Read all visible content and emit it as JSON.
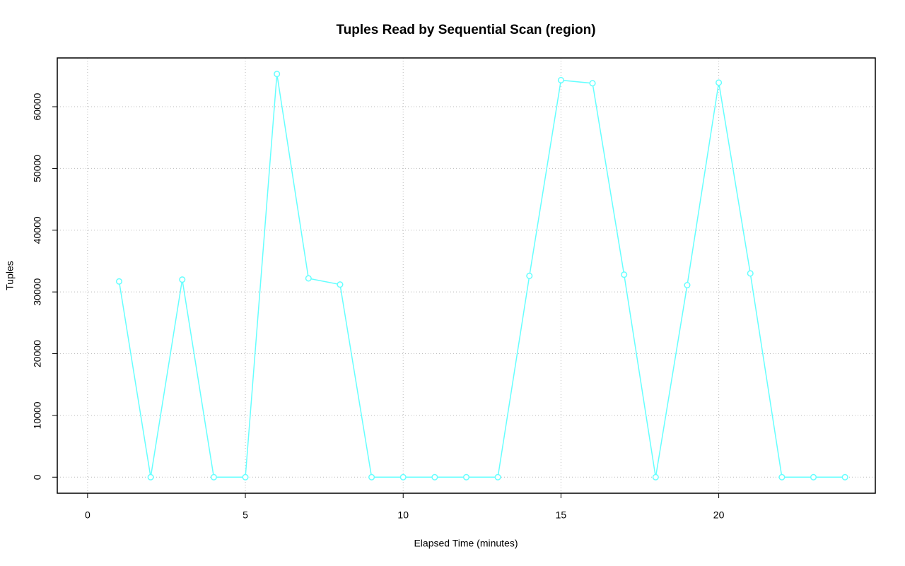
{
  "chart_data": {
    "type": "line",
    "title": "Tuples Read by Sequential Scan (region)",
    "x_label": "Elapsed Time (minutes)",
    "y_label": "Tuples",
    "x": [
      1,
      2,
      3,
      4,
      5,
      6,
      7,
      8,
      9,
      10,
      11,
      12,
      13,
      14,
      15,
      16,
      17,
      18,
      19,
      20,
      21,
      22,
      23,
      24
    ],
    "series": [
      {
        "name": "region",
        "color": "#66ffff",
        "values": [
          31700,
          0,
          32000,
          0,
          0,
          65300,
          32200,
          31200,
          0,
          0,
          0,
          0,
          0,
          32600,
          64300,
          63800,
          32800,
          0,
          31100,
          63900,
          33000,
          0,
          0,
          0
        ]
      }
    ],
    "xlim": [
      -0.96,
      24.96
    ],
    "ylim": [
      -2600,
      67900
    ],
    "xticks": [
      0,
      5,
      10,
      15,
      20
    ],
    "yticks": [
      0,
      10000,
      20000,
      30000,
      40000,
      50000,
      60000
    ],
    "grid": true
  }
}
